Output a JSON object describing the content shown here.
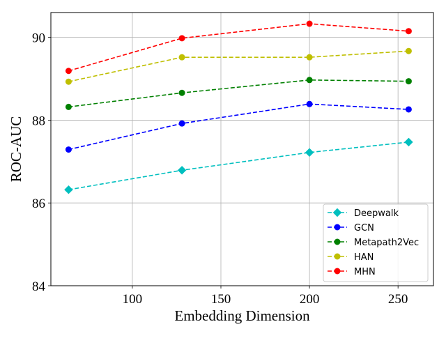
{
  "chart_data": {
    "type": "line",
    "title": "",
    "xlabel": "Embedding Dimension",
    "ylabel": "ROC-AUC",
    "x": [
      64,
      128,
      200,
      256
    ],
    "xlim": [
      54,
      270
    ],
    "ylim": [
      84,
      90.6
    ],
    "xticks": [
      100,
      150,
      200,
      250
    ],
    "xtick_labels": [
      "100",
      "150",
      "200",
      "250"
    ],
    "yticks": [
      84,
      86,
      88,
      90
    ],
    "ytick_labels": [
      "84",
      "86",
      "88",
      "90"
    ],
    "grid": true,
    "legend_position": "lower-right",
    "series": [
      {
        "name": "Deepwalk",
        "color": "#00bfbf",
        "marker": "diamond",
        "linestyle": "dashed",
        "values": [
          86.32,
          86.79,
          87.22,
          87.47
        ]
      },
      {
        "name": "GCN",
        "color": "#0000ff",
        "marker": "circle",
        "linestyle": "dashed",
        "values": [
          87.29,
          87.92,
          88.39,
          88.26
        ]
      },
      {
        "name": "Metapath2Vec",
        "color": "#008000",
        "marker": "circle",
        "linestyle": "dashed",
        "values": [
          88.32,
          88.66,
          88.97,
          88.94
        ]
      },
      {
        "name": "HAN",
        "color": "#bfbf00",
        "marker": "circle",
        "linestyle": "dashed",
        "values": [
          88.93,
          89.52,
          89.52,
          89.67
        ]
      },
      {
        "name": "MHN",
        "color": "#ff0000",
        "marker": "circle",
        "linestyle": "dashed",
        "values": [
          89.19,
          89.98,
          90.33,
          90.15
        ]
      }
    ]
  }
}
